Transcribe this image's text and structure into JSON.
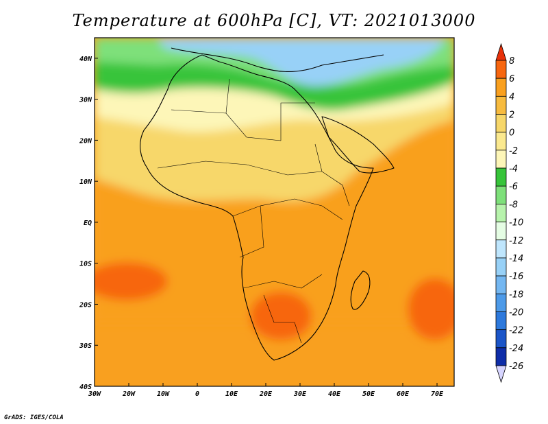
{
  "title": "Temperature at 600hPa [C], VT: 2021013000",
  "credit": "GrADS: IGES/COLA",
  "map": {
    "lon_range": [
      -30,
      75
    ],
    "lat_range": [
      -40,
      45
    ],
    "lon_ticks": [
      {
        "value": -30,
        "label": "30W"
      },
      {
        "value": -20,
        "label": "20W"
      },
      {
        "value": -10,
        "label": "10W"
      },
      {
        "value": 0,
        "label": "0"
      },
      {
        "value": 10,
        "label": "10E"
      },
      {
        "value": 20,
        "label": "20E"
      },
      {
        "value": 30,
        "label": "30E"
      },
      {
        "value": 40,
        "label": "40E"
      },
      {
        "value": 50,
        "label": "50E"
      },
      {
        "value": 60,
        "label": "60E"
      },
      {
        "value": 70,
        "label": "70E"
      }
    ],
    "lat_ticks": [
      {
        "value": 40,
        "label": "40N"
      },
      {
        "value": 30,
        "label": "30N"
      },
      {
        "value": 20,
        "label": "20N"
      },
      {
        "value": 10,
        "label": "10N"
      },
      {
        "value": 0,
        "label": "EQ"
      },
      {
        "value": -10,
        "label": "10S"
      },
      {
        "value": -20,
        "label": "20S"
      },
      {
        "value": -30,
        "label": "30S"
      },
      {
        "value": -40,
        "label": "40S"
      }
    ]
  },
  "colorbar": {
    "levels": [
      "8",
      "6",
      "4",
      "2",
      "0",
      "-2",
      "-4",
      "-6",
      "-8",
      "-10",
      "-12",
      "-14",
      "-16",
      "-18",
      "-20",
      "-22",
      "-24",
      "-26"
    ],
    "colors": [
      "#e8310a",
      "#f7660f",
      "#f9a01f",
      "#f7bb3f",
      "#f7d76a",
      "#fbe98f",
      "#fdf6b8",
      "#37c43a",
      "#7ee07a",
      "#b7f3ac",
      "#e5fde4",
      "#bfe6fd",
      "#98d1f7",
      "#74b7f1",
      "#4d9ae8",
      "#2d79dc",
      "#1b55c8",
      "#0e2da8",
      "#071580"
    ]
  },
  "regions": [
    {
      "name": "orange-central-band",
      "color": "#f9a01f"
    },
    {
      "name": "light-orange-sahara",
      "color": "#f7d76a"
    },
    {
      "name": "pale-yellow-north",
      "color": "#fdf6b8"
    },
    {
      "name": "green-mediterranean",
      "color": "#37c43a"
    },
    {
      "name": "light-green-band",
      "color": "#7ee07a"
    },
    {
      "name": "blue-cold-core",
      "color": "#98d1f7"
    },
    {
      "name": "red-orange-south-atlantic",
      "color": "#f7660f"
    },
    {
      "name": "red-orange-southern-africa",
      "color": "#f7660f"
    },
    {
      "name": "red-orange-south-indian",
      "color": "#f7660f"
    }
  ]
}
